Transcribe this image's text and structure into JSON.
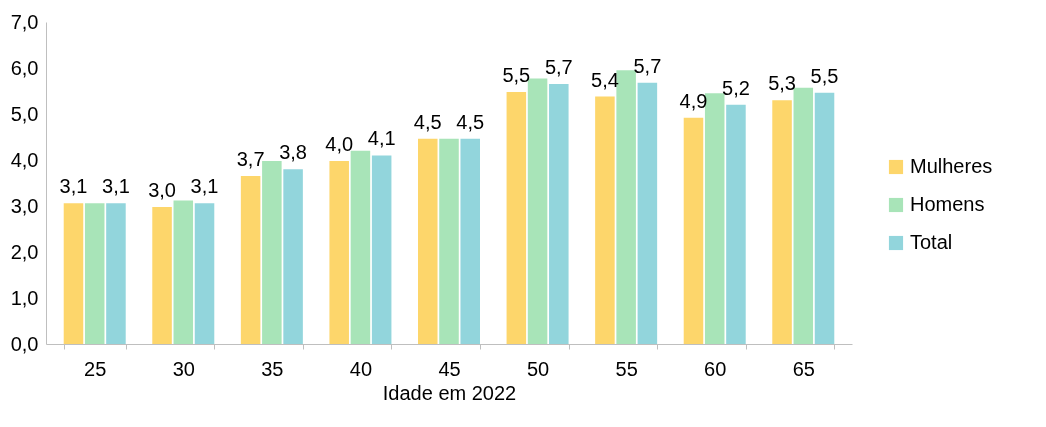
{
  "chart_data": {
    "type": "bar",
    "xlabel": "Idade em 2022",
    "categories": [
      "25",
      "30",
      "35",
      "40",
      "45",
      "50",
      "55",
      "60",
      "65"
    ],
    "series": [
      {
        "name": "Mulheres",
        "color": "#fdd66b",
        "values": [
          3.06,
          2.98,
          3.65,
          3.98,
          4.46,
          5.48,
          5.38,
          4.92,
          5.3
        ],
        "value_labels": [
          "3,1",
          "3,0",
          "3,7",
          "4,0",
          "4,5",
          "5,5",
          "5,4",
          "4,9",
          "5,3"
        ]
      },
      {
        "name": "Homens",
        "color": "#a8e4b8",
        "values": [
          3.06,
          3.12,
          3.98,
          4.2,
          4.46,
          5.77,
          5.95,
          5.45,
          5.57
        ]
      },
      {
        "name": "Total",
        "color": "#92d5dc",
        "values": [
          3.06,
          3.06,
          3.8,
          4.1,
          4.46,
          5.65,
          5.68,
          5.2,
          5.46
        ],
        "value_labels": [
          "3,1",
          "3,1",
          "3,8",
          "4,1",
          "4,5",
          "5,7",
          "5,7",
          "5,2",
          "5,5"
        ]
      }
    ],
    "ylim": [
      0,
      7
    ],
    "yticks": [
      {
        "value": 0,
        "label": "0,0"
      },
      {
        "value": 1,
        "label": "1,0"
      },
      {
        "value": 2,
        "label": "2,0"
      },
      {
        "value": 3,
        "label": "3,0"
      },
      {
        "value": 4,
        "label": "4,0"
      },
      {
        "value": 5,
        "label": "5,0"
      },
      {
        "value": 6,
        "label": "6,0"
      },
      {
        "value": 7,
        "label": "7,0"
      }
    ],
    "grid": false,
    "legend": "right"
  }
}
